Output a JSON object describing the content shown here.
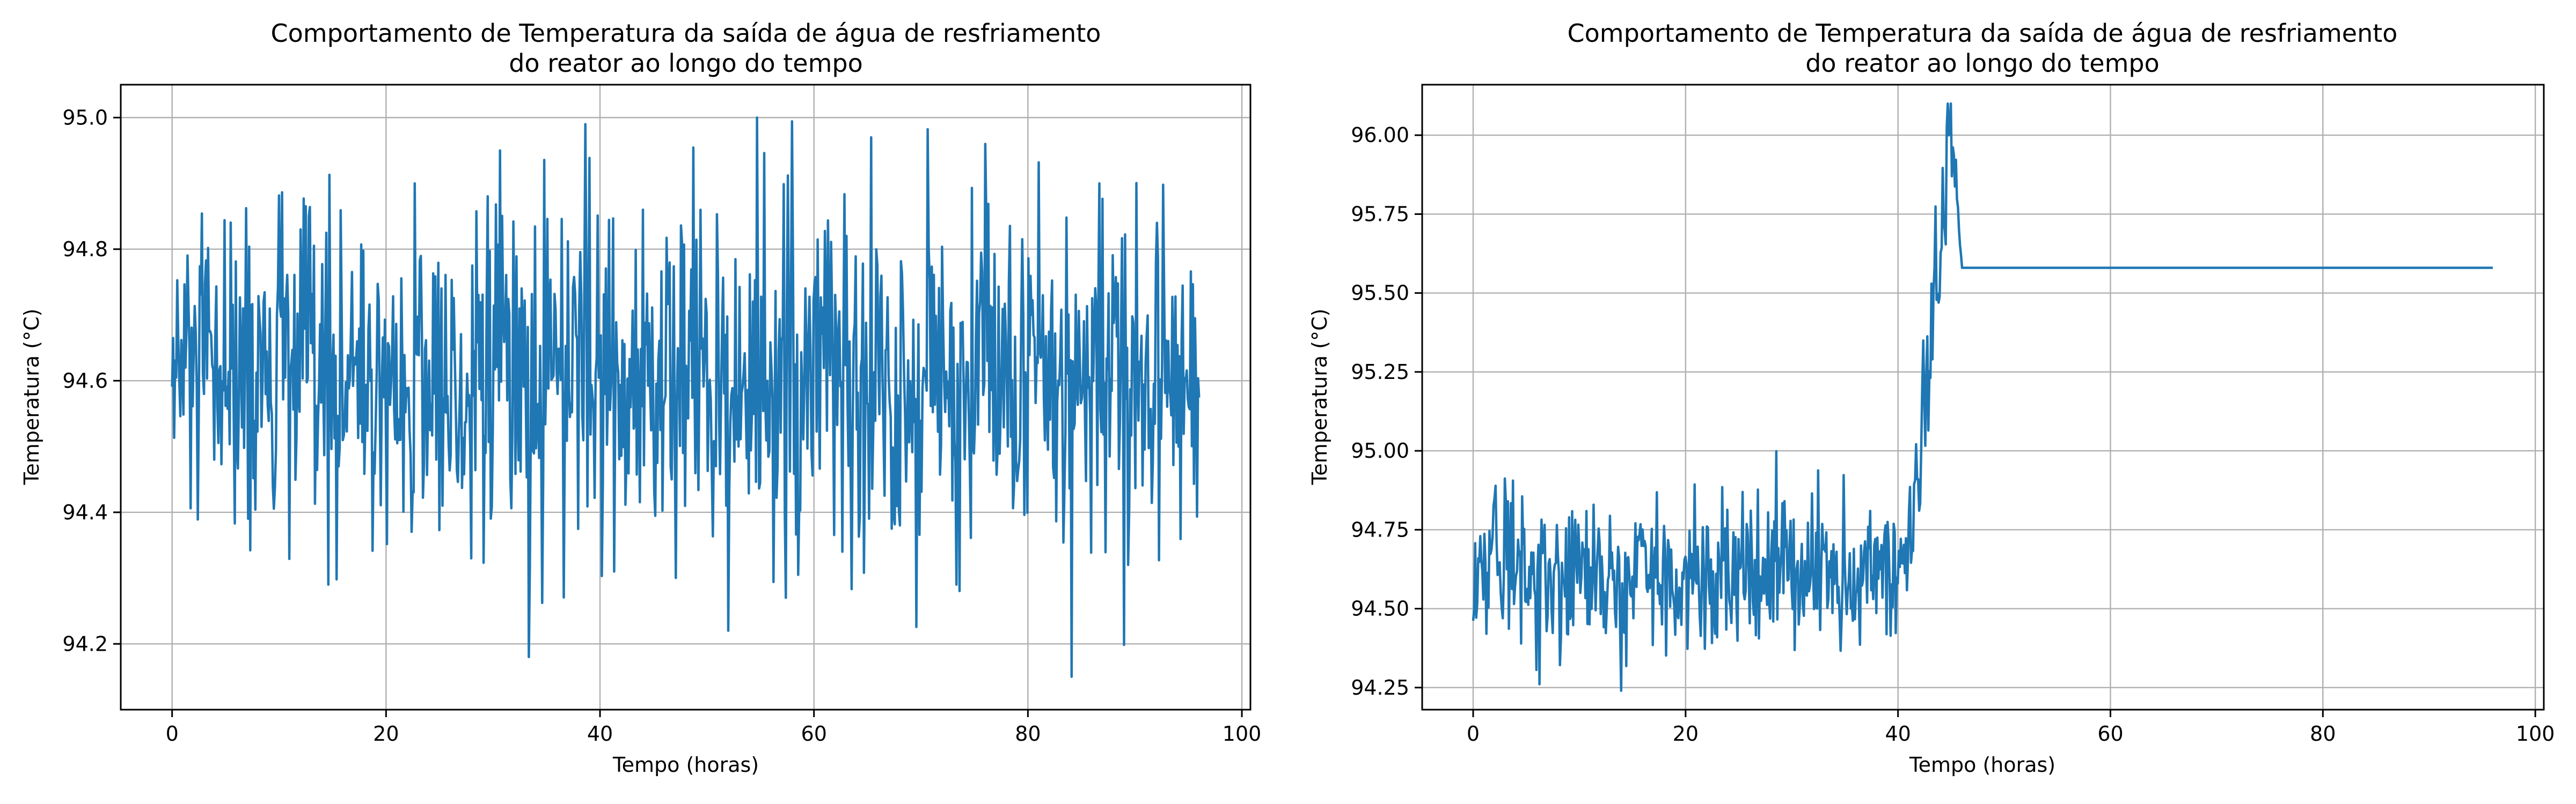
{
  "chart_data": [
    {
      "type": "line",
      "title": "Comportamento de Temperatura da saída de água de resfriamento\ndo reator ao longo do tempo",
      "xlabel": "Tempo (horas)",
      "ylabel": "Temperatura (°C)",
      "xlim": [
        -4.8,
        100.8
      ],
      "ylim": [
        94.1,
        95.05
      ],
      "xticks": [
        0,
        20,
        40,
        60,
        80,
        100
      ],
      "yticks": [
        94.2,
        94.4,
        94.6,
        94.8,
        95.0
      ],
      "ytick_labels": [
        "94.2",
        "94.4",
        "94.6",
        "94.8",
        "95.0"
      ],
      "grid": true,
      "line_color": "#1f77b4",
      "series": [
        {
          "x_range": [
            0,
            96
          ],
          "num_points": 1000,
          "mean": 94.6,
          "std": 0.13,
          "min": 94.15,
          "max": 95.0,
          "values_sample": [
            94.62,
            94.48,
            94.71,
            94.55,
            94.83,
            94.29,
            94.66,
            94.52,
            94.9,
            94.41,
            94.33,
            94.95,
            94.18,
            94.58,
            94.99,
            94.31,
            94.86,
            94.45,
            94.63,
            94.22,
            95.0,
            94.27,
            94.75,
            94.34,
            94.97,
            94.38,
            94.8,
            94.29,
            94.96,
            94.44,
            94.73,
            94.15,
            94.9,
            94.32,
            94.84,
            94.6
          ]
        }
      ]
    },
    {
      "type": "line",
      "title": "Comportamento de Temperatura da saída de água de resfriamento\ndo reator ao longo do tempo",
      "xlabel": "Tempo (horas)",
      "ylabel": "Temperatura (°C)",
      "xlim": [
        -4.8,
        100.8
      ],
      "ylim": [
        94.18,
        96.16
      ],
      "xticks": [
        0,
        20,
        40,
        60,
        80,
        100
      ],
      "yticks": [
        94.25,
        94.5,
        94.75,
        95.0,
        95.25,
        95.5,
        95.75,
        96.0
      ],
      "ytick_labels": [
        "94.25",
        "94.50",
        "94.75",
        "95.00",
        "95.25",
        "95.50",
        "95.75",
        "96.00"
      ],
      "grid": true,
      "line_color": "#1f77b4",
      "series": [
        {
          "segments": [
            {
              "phase": "noise",
              "x_range": [
                0,
                40
              ],
              "mean": 94.6,
              "std": 0.12,
              "min": 94.24,
              "max": 95.02
            },
            {
              "phase": "rise",
              "x_range": [
                40,
                45
              ],
              "from": 94.6,
              "to": 96.1
            },
            {
              "phase": "settle",
              "x_range": [
                45,
                46
              ],
              "from": 96.1,
              "to": 95.58
            },
            {
              "phase": "constant",
              "x_range": [
                46,
                96
              ],
              "value": 95.58
            }
          ],
          "num_points": 1000
        }
      ]
    }
  ]
}
